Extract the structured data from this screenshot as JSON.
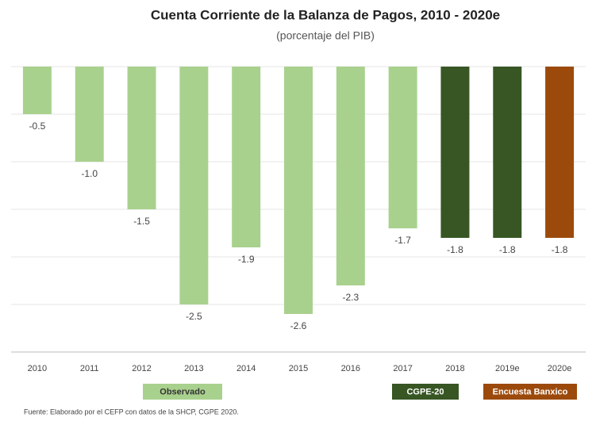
{
  "chart_data": {
    "type": "bar",
    "title": "Cuenta Corriente de la Balanza de Pagos, 2010 - 2020e",
    "subtitle": "(porcentaje del PIB)",
    "categories": [
      "2010",
      "2011",
      "2012",
      "2013",
      "2014",
      "2015",
      "2016",
      "2017",
      "2018",
      "2019e",
      "2020e"
    ],
    "values": [
      -0.5,
      -1.0,
      -1.5,
      -2.5,
      -1.9,
      -2.6,
      -2.3,
      -1.7,
      -1.8,
      -1.8,
      -1.8
    ],
    "value_labels": [
      "-0.5",
      "-1.0",
      "-1.5",
      "-2.5",
      "-1.9",
      "-2.6",
      "-2.3",
      "-1.7",
      "-1.8",
      "-1.8",
      "-1.8"
    ],
    "colors": [
      "#a9d18e",
      "#a9d18e",
      "#a9d18e",
      "#a9d18e",
      "#a9d18e",
      "#a9d18e",
      "#a9d18e",
      "#a9d18e",
      "#375623",
      "#375623",
      "#9c4a0c"
    ],
    "legend": [
      {
        "name": "Observado",
        "color": "#a9d18e"
      },
      {
        "name": "CGPE-20",
        "color": "#375623"
      },
      {
        "name": "Encuesta Banxico",
        "color": "#9c4a0c"
      }
    ],
    "ylim": [
      -3,
      0
    ],
    "yticks": [
      -3,
      -2.5,
      -2,
      -1.5,
      -1,
      -0.5,
      0
    ],
    "grid": true,
    "source": "Fuente: Elaborado por el CEFP con datos de la SHCP, CGPE 2020."
  }
}
